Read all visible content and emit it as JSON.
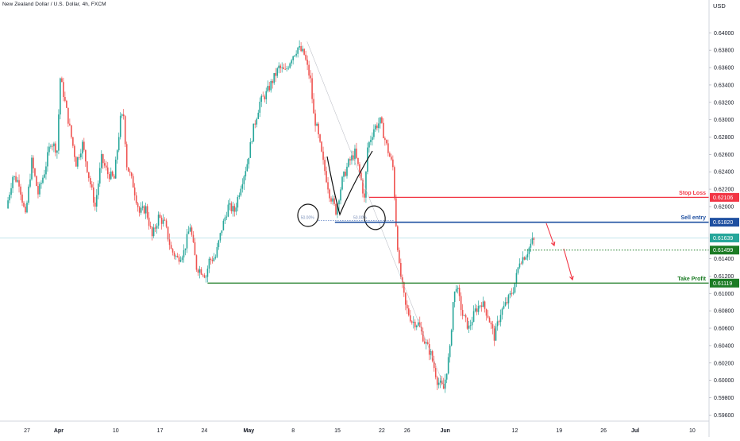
{
  "chart_title": "New Zealand Dollar / U.S. Dollar, 4h, FXCM",
  "chart_data": {
    "type": "candlestick",
    "currency_label": "USD",
    "y_ticks": [
      0.64,
      0.638,
      0.636,
      0.634,
      0.632,
      0.63,
      0.628,
      0.626,
      0.624,
      0.622,
      0.62,
      0.614,
      0.612,
      0.61,
      0.608,
      0.606,
      0.604,
      0.602,
      0.6,
      0.598,
      0.596
    ],
    "ylim": [
      0.5953,
      0.6425
    ],
    "x_ticks": [
      {
        "label": "27",
        "day": 0
      },
      {
        "label": "Apr",
        "day": 5
      },
      {
        "label": "10",
        "day": 14
      },
      {
        "label": "17",
        "day": 21
      },
      {
        "label": "24",
        "day": 28
      },
      {
        "label": "May",
        "day": 35
      },
      {
        "label": "8",
        "day": 42
      },
      {
        "label": "15",
        "day": 49
      },
      {
        "label": "22",
        "day": 56
      },
      {
        "label": "26",
        "day": 60
      },
      {
        "label": "Jun",
        "day": 66
      },
      {
        "label": "12",
        "day": 77
      },
      {
        "label": "19",
        "day": 84
      },
      {
        "label": "26",
        "day": 91
      },
      {
        "label": "Jul",
        "day": 96
      },
      {
        "label": "10",
        "day": 105
      }
    ],
    "xlim_days": [
      -3,
      107
    ],
    "colors": {
      "up": "#26a69a",
      "down": "#ef5350"
    },
    "price_path": [
      [
        -3,
        0.6198
      ],
      [
        -2,
        0.6235
      ],
      [
        -1,
        0.6228
      ],
      [
        0,
        0.6188
      ],
      [
        1,
        0.6252
      ],
      [
        2,
        0.6215
      ],
      [
        3,
        0.624
      ],
      [
        4,
        0.6275
      ],
      [
        5,
        0.6265
      ],
      [
        5.5,
        0.6348
      ],
      [
        6,
        0.633
      ],
      [
        7,
        0.629
      ],
      [
        8,
        0.625
      ],
      [
        9,
        0.6272
      ],
      [
        10,
        0.6235
      ],
      [
        11,
        0.62
      ],
      [
        12,
        0.6255
      ],
      [
        13,
        0.6238
      ],
      [
        14,
        0.6232
      ],
      [
        15,
        0.63
      ],
      [
        15.5,
        0.6305
      ],
      [
        16,
        0.6248
      ],
      [
        17,
        0.6225
      ],
      [
        18,
        0.6193
      ],
      [
        19,
        0.6198
      ],
      [
        20,
        0.6165
      ],
      [
        21,
        0.6188
      ],
      [
        22,
        0.618
      ],
      [
        23,
        0.615
      ],
      [
        24,
        0.614
      ],
      [
        25,
        0.6148
      ],
      [
        26,
        0.6178
      ],
      [
        27,
        0.613
      ],
      [
        28,
        0.6125
      ],
      [
        28.5,
        0.612
      ],
      [
        29,
        0.6138
      ],
      [
        30,
        0.6142
      ],
      [
        31,
        0.6175
      ],
      [
        32,
        0.62
      ],
      [
        33,
        0.6195
      ],
      [
        34,
        0.6225
      ],
      [
        35,
        0.625
      ],
      [
        36,
        0.629
      ],
      [
        37,
        0.632
      ],
      [
        38,
        0.633
      ],
      [
        39,
        0.6345
      ],
      [
        40,
        0.636
      ],
      [
        41,
        0.6355
      ],
      [
        42,
        0.6372
      ],
      [
        43,
        0.6383
      ],
      [
        44,
        0.6375
      ],
      [
        45,
        0.6345
      ],
      [
        45.5,
        0.6305
      ],
      [
        46,
        0.629
      ],
      [
        47,
        0.625
      ],
      [
        48,
        0.6215
      ],
      [
        49,
        0.6195
      ],
      [
        50,
        0.623
      ],
      [
        51,
        0.625
      ],
      [
        52,
        0.6262
      ],
      [
        53,
        0.623
      ],
      [
        53.5,
        0.6208
      ],
      [
        54,
        0.6268
      ],
      [
        55,
        0.629
      ],
      [
        56,
        0.6298
      ],
      [
        57,
        0.627
      ],
      [
        58,
        0.6245
      ],
      [
        58.5,
        0.618
      ],
      [
        59,
        0.613
      ],
      [
        60,
        0.6085
      ],
      [
        61,
        0.6068
      ],
      [
        62,
        0.6065
      ],
      [
        63,
        0.6045
      ],
      [
        64,
        0.603
      ],
      [
        65,
        0.6
      ],
      [
        66,
        0.599
      ],
      [
        67,
        0.6035
      ],
      [
        67.5,
        0.609
      ],
      [
        68,
        0.611
      ],
      [
        69,
        0.6075
      ],
      [
        70,
        0.606
      ],
      [
        71,
        0.608
      ],
      [
        72,
        0.609
      ],
      [
        73,
        0.6075
      ],
      [
        74,
        0.605
      ],
      [
        75,
        0.6078
      ],
      [
        76,
        0.609
      ],
      [
        77,
        0.6105
      ],
      [
        77.5,
        0.612
      ],
      [
        78,
        0.6138
      ],
      [
        79,
        0.6145
      ],
      [
        80,
        0.616
      ]
    ],
    "levels": [
      {
        "name": "Stop Loss",
        "value": "0.62106",
        "price": 0.62106,
        "color": "#f23645",
        "from_day": 54
      },
      {
        "name": "Sell entry",
        "value": "0.61820",
        "price": 0.6182,
        "color": "#1e4fa0",
        "from_day": 48.6
      },
      {
        "name": "Take Profit",
        "value": "0.61119",
        "price": 0.61119,
        "color": "#1b7b24",
        "from_day": 28.5
      }
    ],
    "price_tags": [
      {
        "value": "0.61639",
        "price": 0.61639,
        "color": "#26a69a"
      },
      {
        "value": "0.61499",
        "price": 0.61499,
        "color": "#1b7b24"
      }
    ],
    "current_price": 0.61639,
    "fib_labels": [
      "50.00%",
      "50.00%"
    ],
    "fib_price": 0.6184
  }
}
